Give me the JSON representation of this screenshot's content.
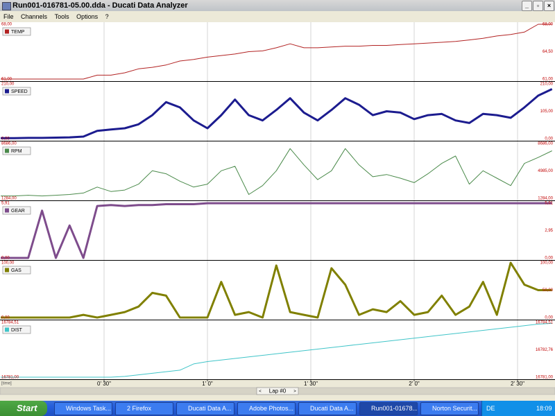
{
  "window": {
    "title": "Run001-016781-05.00.dda - Ducati Data Analyzer",
    "menu": [
      "File",
      "Channels",
      "Tools",
      "Options",
      "?"
    ]
  },
  "time_s": [
    0,
    4,
    8,
    12,
    16,
    20,
    24,
    28,
    32,
    36,
    40,
    44,
    48,
    52,
    56,
    60,
    64,
    68,
    72,
    76,
    80,
    84,
    88,
    92,
    96,
    100,
    104,
    108,
    112,
    116,
    120,
    124,
    128,
    132,
    136,
    140,
    144,
    148,
    152,
    156,
    160
  ],
  "channels": [
    {
      "name": "TEMP",
      "color": "#b22222",
      "line_width": 1,
      "ylim": [
        61,
        68
      ],
      "yticks": [
        {
          "value": 61,
          "label": "61,00"
        },
        {
          "value": 64.5,
          "label": "64,50"
        },
        {
          "value": 68,
          "label": "68,00"
        }
      ],
      "values": [
        61,
        61,
        61,
        61,
        61,
        61,
        61,
        61.5,
        61.5,
        61.8,
        62.3,
        62.5,
        62.8,
        63.3,
        63.5,
        63.8,
        64,
        64.2,
        64.5,
        64.6,
        65,
        65.5,
        65,
        65,
        65.1,
        65.2,
        65.2,
        65.3,
        65.3,
        65.4,
        65.5,
        65.6,
        65.7,
        65.8,
        66,
        66.2,
        66.5,
        66.7,
        67,
        68,
        68
      ]
    },
    {
      "name": "SPEED",
      "color": "#1c1c8f",
      "line_width": 3,
      "ylim": [
        0,
        210
      ],
      "yticks": [
        {
          "value": 0,
          "label": "0,00"
        },
        {
          "value": 105,
          "label": "105,00"
        },
        {
          "value": 210,
          "label": "210,00"
        }
      ],
      "values": [
        2,
        2,
        3,
        3,
        4,
        5,
        8,
        30,
        35,
        40,
        55,
        90,
        140,
        120,
        70,
        40,
        90,
        150,
        90,
        70,
        110,
        155,
        100,
        70,
        110,
        155,
        130,
        90,
        105,
        100,
        75,
        90,
        95,
        70,
        60,
        95,
        90,
        80,
        120,
        165,
        190
      ]
    },
    {
      "name": "RPM",
      "color": "#4a8a4a",
      "line_width": 1,
      "ylim": [
        1284,
        8686
      ],
      "yticks": [
        {
          "value": 1284,
          "label": "1284,00"
        },
        {
          "value": 4985,
          "label": "4985,00"
        },
        {
          "value": 8686,
          "label": "8686,00"
        }
      ],
      "values": [
        1600,
        1600,
        1700,
        1600,
        1700,
        1800,
        2000,
        2800,
        2200,
        2400,
        3200,
        5000,
        4600,
        3600,
        2800,
        3200,
        5000,
        5600,
        1800,
        3000,
        5000,
        8000,
        5800,
        3800,
        5000,
        8000,
        5800,
        4200,
        4500,
        4000,
        3400,
        4600,
        6000,
        7000,
        3200,
        5000,
        4000,
        3000,
        6000,
        6800,
        7700
      ]
    },
    {
      "name": "GEAR",
      "color": "#7e4c8c",
      "line_width": 3,
      "ylim": [
        0,
        5.91
      ],
      "yticks": [
        {
          "value": 0,
          "label": "0,00"
        },
        {
          "value": 2.95,
          "label": "2,95"
        },
        {
          "value": 5.91,
          "label": "5,91"
        }
      ],
      "values": [
        0,
        0,
        0,
        5.1,
        0,
        3.5,
        0,
        5.6,
        5.7,
        5.6,
        5.7,
        5.7,
        5.8,
        5.8,
        5.8,
        5.9,
        5.9,
        5.9,
        5.9,
        5.9,
        5.9,
        5.9,
        5.9,
        5.9,
        5.9,
        5.9,
        5.9,
        5.9,
        5.9,
        5.9,
        5.9,
        5.9,
        5.9,
        5.9,
        5.9,
        5.9,
        5.9,
        5.9,
        5.9,
        5.9,
        5.9
      ]
    },
    {
      "name": "GAS",
      "color": "#808000",
      "line_width": 3,
      "ylim": [
        0,
        100
      ],
      "yticks": [
        {
          "value": 0,
          "label": "0,00"
        },
        {
          "value": 50,
          "label": "50,00"
        },
        {
          "value": 100,
          "label": "100,00"
        }
      ],
      "values": [
        0,
        0,
        0,
        0,
        0,
        0,
        5,
        0,
        5,
        10,
        20,
        45,
        40,
        0,
        0,
        0,
        65,
        5,
        10,
        0,
        95,
        10,
        5,
        0,
        90,
        60,
        5,
        15,
        10,
        30,
        5,
        10,
        40,
        5,
        20,
        65,
        5,
        100,
        60,
        50,
        50
      ]
    },
    {
      "name": "DIST",
      "color": "#3fc4c8",
      "line_width": 1,
      "ylim": [
        16781,
        16784.51
      ],
      "yticks": [
        {
          "value": 16781,
          "label": "16781,00"
        },
        {
          "value": 16782.76,
          "label": "16782,76"
        },
        {
          "value": 16784.51,
          "label": "16784,51"
        }
      ],
      "values": [
        16781,
        16781,
        16781,
        16781,
        16781,
        16781,
        16781,
        16781,
        16781,
        16781.05,
        16781.15,
        16781.25,
        16781.35,
        16781.45,
        16781.85,
        16782,
        16782.1,
        16782.2,
        16782.3,
        16782.4,
        16782.5,
        16782.6,
        16782.7,
        16782.8,
        16782.9,
        16783,
        16783.1,
        16783.2,
        16783.3,
        16783.4,
        16783.5,
        16783.6,
        16783.7,
        16783.8,
        16783.9,
        16784,
        16784.1,
        16784.2,
        16784.3,
        16784.4,
        16784.45
      ]
    }
  ],
  "time_axis": {
    "label": "[time]",
    "ticks": [
      {
        "value": 30,
        "label": "0' 30\""
      },
      {
        "value": 60,
        "label": "1' 0\""
      },
      {
        "value": 90,
        "label": "1' 30\""
      },
      {
        "value": 120,
        "label": "2' 0\""
      },
      {
        "value": 150,
        "label": "2' 30\""
      }
    ]
  },
  "lap": {
    "prev": "<",
    "label": "Lap #0",
    "next": ">"
  },
  "taskbar": {
    "start": "Start",
    "items": [
      "Windows Task...",
      "2 Firefox",
      "Ducati Data A...",
      "Adobe Photos...",
      "Ducati Data A...",
      "Run001-01678...",
      "Norton Securit..."
    ],
    "language": "DE",
    "clock": "18:09"
  }
}
